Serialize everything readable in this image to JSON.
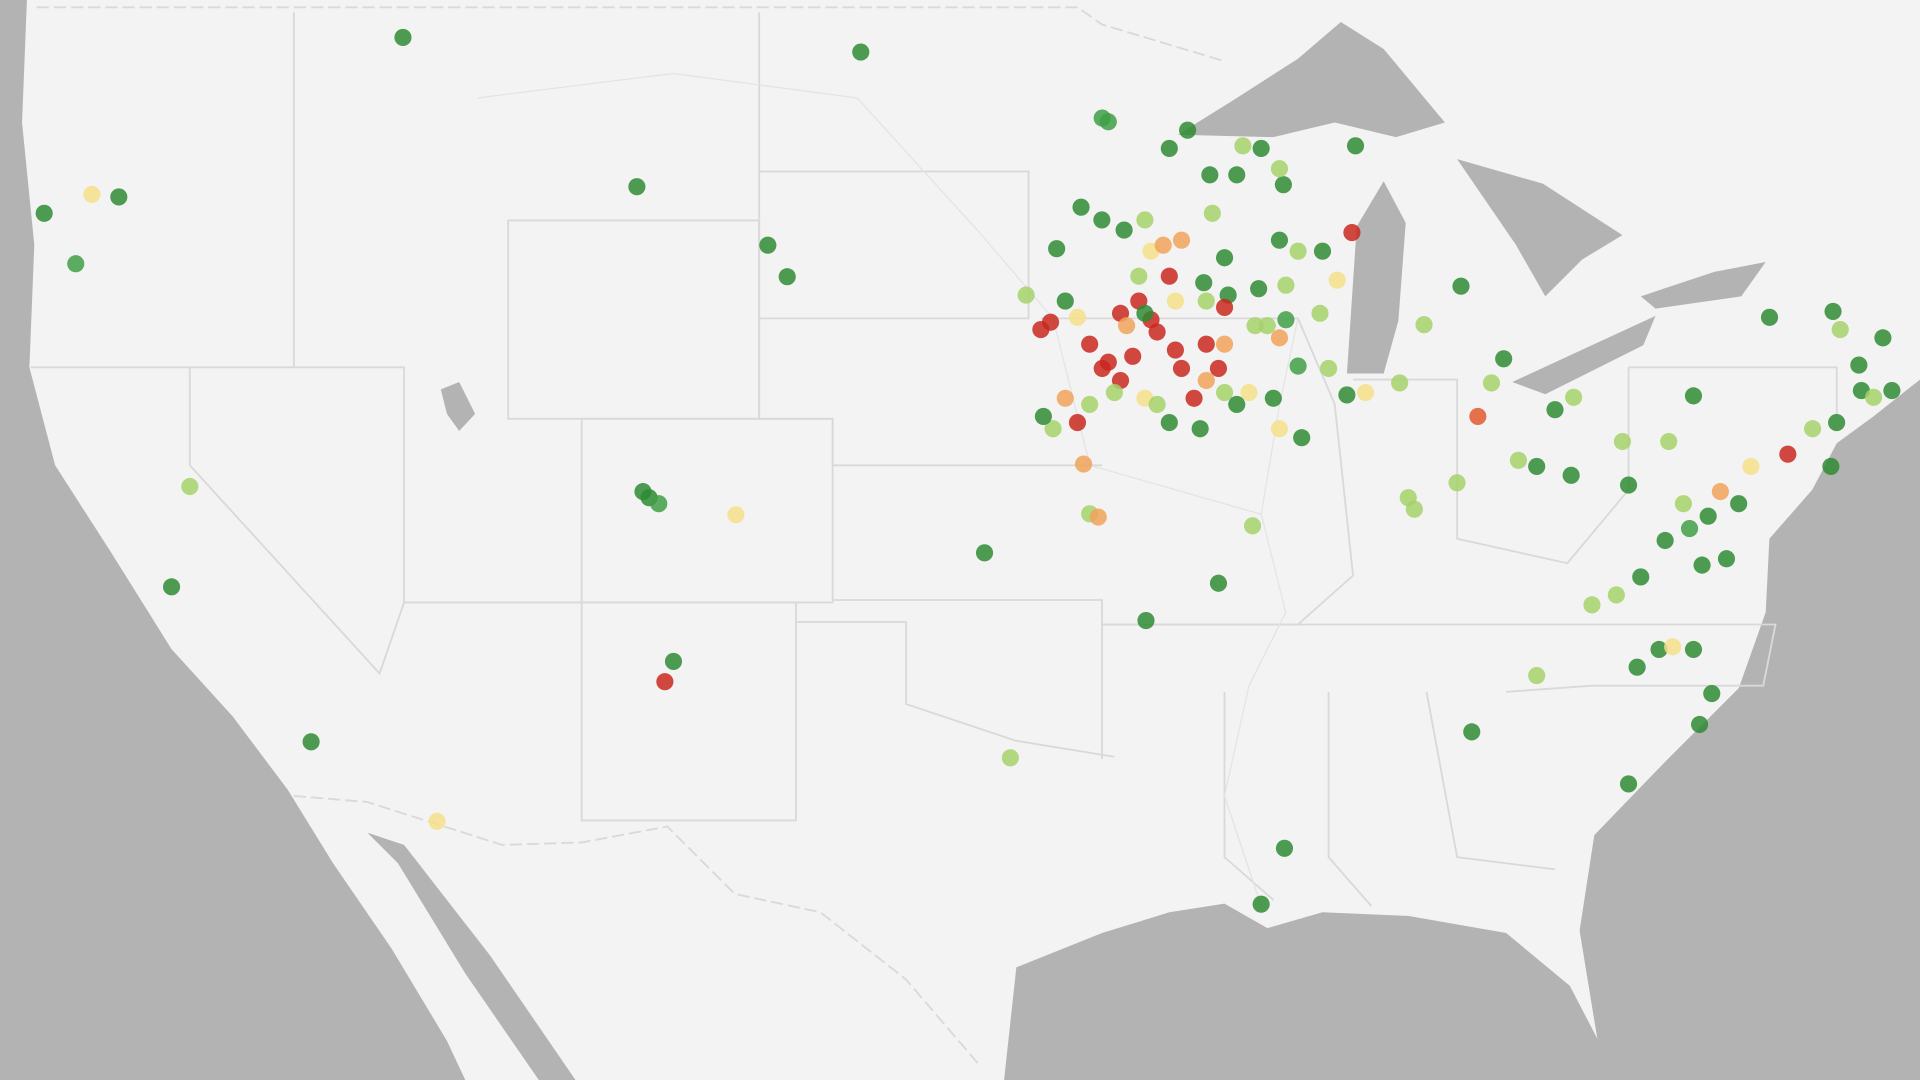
{
  "map": {
    "points": [
      [
        -114.03,
        48.53,
        "#2e8b34"
      ],
      [
        -101.27,
        48.26,
        "#2e8b34"
      ],
      [
        -107.51,
        45.7,
        "#2e8b34"
      ],
      [
        -124.03,
        45.18,
        "#2e8b34"
      ],
      [
        -121.95,
        45.5,
        "#2e8b34"
      ],
      [
        -122.7,
        45.55,
        "#f5df8a"
      ],
      [
        -123.15,
        44.18,
        "#3f9f45"
      ],
      [
        -103.86,
        44.55,
        "#2e8b34"
      ],
      [
        -103.32,
        43.92,
        "#2e8b34"
      ],
      [
        -119.97,
        39.56,
        "#a4d16a"
      ],
      [
        -120.48,
        37.37,
        "#2e8b34"
      ],
      [
        -116.59,
        33.86,
        "#2e8b34"
      ],
      [
        -113.08,
        32.0,
        "#f5df8a"
      ],
      [
        -107.17,
        39.32,
        "#2e8b34"
      ],
      [
        -107.34,
        39.45,
        "#2e8b34"
      ],
      [
        -106.9,
        39.19,
        "#3f9f45"
      ],
      [
        -104.75,
        38.95,
        "#f5df8a"
      ],
      [
        -106.49,
        35.7,
        "#2e8b34"
      ],
      [
        -106.73,
        35.24,
        "#c9281e"
      ],
      [
        -97.82,
        38.12,
        "#2e8b34"
      ],
      [
        -97.1,
        33.49,
        "#a4d16a"
      ],
      [
        -93.32,
        36.62,
        "#2e8b34"
      ],
      [
        -91.3,
        37.45,
        "#2e8b34"
      ],
      [
        -90.35,
        38.71,
        "#a4d16a"
      ],
      [
        -94.89,
        38.97,
        "#a4d16a"
      ],
      [
        -94.65,
        38.9,
        "#f0a35a"
      ],
      [
        -95.06,
        40.04,
        "#f0a35a"
      ],
      [
        -89.46,
        31.36,
        "#2e8b34"
      ],
      [
        -90.11,
        30.02,
        "#2e8b34"
      ],
      [
        -84.24,
        34.09,
        "#2e8b34"
      ],
      [
        -82.43,
        35.38,
        "#a4d16a"
      ],
      [
        -79.87,
        32.88,
        "#2e8b34"
      ],
      [
        -77.89,
        34.26,
        "#2e8b34"
      ],
      [
        -77.55,
        34.97,
        "#2e8b34"
      ],
      [
        -79.63,
        35.57,
        "#2e8b34"
      ],
      [
        -79.02,
        35.97,
        "#2e8b34"
      ],
      [
        -78.06,
        35.97,
        "#2e8b34"
      ],
      [
        -78.64,
        36.03,
        "#f5df8a"
      ],
      [
        -80.89,
        36.97,
        "#a4d16a"
      ],
      [
        -80.21,
        37.19,
        "#a4d16a"
      ],
      [
        -79.53,
        37.59,
        "#2e8b34"
      ],
      [
        -78.85,
        38.39,
        "#2e8b34"
      ],
      [
        -78.17,
        38.65,
        "#3f9f45"
      ],
      [
        -77.65,
        38.92,
        "#2e8b34"
      ],
      [
        -77.31,
        39.45,
        "#f0a35a"
      ],
      [
        -77.14,
        37.99,
        "#2e8b34"
      ],
      [
        -77.82,
        37.85,
        "#2e8b34"
      ],
      [
        -76.8,
        39.19,
        "#2e8b34"
      ],
      [
        -78.34,
        39.19,
        "#a4d16a"
      ],
      [
        -79.87,
        39.59,
        "#2e8b34"
      ],
      [
        -78.75,
        40.52,
        "#a4d16a"
      ],
      [
        -80.04,
        40.52,
        "#a4d16a"
      ],
      [
        -76.46,
        39.99,
        "#f5df8a"
      ],
      [
        -75.43,
        40.25,
        "#c9281e"
      ],
      [
        -74.74,
        40.79,
        "#a4d16a"
      ],
      [
        -74.23,
        39.99,
        "#2e8b34"
      ],
      [
        -74.07,
        40.92,
        "#2e8b34"
      ],
      [
        -73.38,
        41.59,
        "#2e8b34"
      ],
      [
        -73.04,
        41.45,
        "#a4d16a"
      ],
      [
        -72.53,
        41.59,
        "#2e8b34"
      ],
      [
        -73.45,
        42.12,
        "#2e8b34"
      ],
      [
        -74.17,
        43.22,
        "#2e8b34"
      ],
      [
        -73.97,
        42.85,
        "#a4d16a"
      ],
      [
        -75.94,
        43.1,
        "#2e8b34"
      ],
      [
        -78.06,
        41.48,
        "#2e8b34"
      ],
      [
        -72.78,
        42.68,
        "#2e8b34"
      ],
      [
        -84.07,
        41.05,
        "#e0582e"
      ],
      [
        -82.94,
        40.12,
        "#a4d16a"
      ],
      [
        -82.43,
        39.99,
        "#2e8b34"
      ],
      [
        -81.47,
        39.8,
        "#2e8b34"
      ],
      [
        -81.92,
        41.19,
        "#2e8b34"
      ],
      [
        -81.4,
        41.45,
        "#a4d16a"
      ],
      [
        -83.35,
        42.25,
        "#2e8b34"
      ],
      [
        -83.69,
        41.75,
        "#a4d16a"
      ],
      [
        -84.65,
        39.64,
        "#a4d16a"
      ],
      [
        -86.01,
        39.32,
        "#a4d16a"
      ],
      [
        -85.84,
        39.07,
        "#a4d16a"
      ],
      [
        -86.25,
        41.75,
        "#a4d16a"
      ],
      [
        -87.2,
        41.55,
        "#f5df8a"
      ],
      [
        -87.72,
        41.5,
        "#2e8b34"
      ],
      [
        -85.57,
        42.95,
        "#a4d16a"
      ],
      [
        -84.54,
        43.73,
        "#2e8b34"
      ],
      [
        -87.48,
        46.49,
        "#2e8b34"
      ],
      [
        -94.54,
        47.02,
        "#3f9f45"
      ],
      [
        -94.37,
        46.95,
        "#3f9f45"
      ],
      [
        -92.16,
        46.79,
        "#2e8b34"
      ],
      [
        -92.67,
        46.44,
        "#2e8b34"
      ],
      [
        -90.11,
        46.44,
        "#2e8b34"
      ],
      [
        -90.62,
        46.49,
        "#a4d16a"
      ],
      [
        -91.54,
        45.93,
        "#2e8b34"
      ],
      [
        -90.79,
        45.93,
        "#2e8b34"
      ],
      [
        -89.49,
        45.74,
        "#2e8b34"
      ],
      [
        -89.6,
        46.05,
        "#a4d16a"
      ],
      [
        -95.13,
        45.3,
        "#2e8b34"
      ],
      [
        -94.55,
        45.05,
        "#2e8b34"
      ],
      [
        -95.81,
        44.48,
        "#2e8b34"
      ],
      [
        -93.35,
        45.05,
        "#a4d16a"
      ],
      [
        -93.93,
        44.85,
        "#2e8b34"
      ],
      [
        -93.18,
        44.43,
        "#f5df8a"
      ],
      [
        -92.33,
        44.65,
        "#f0a35a"
      ],
      [
        -91.47,
        45.18,
        "#a4d16a"
      ],
      [
        -89.6,
        44.65,
        "#2e8b34"
      ],
      [
        -89.08,
        44.43,
        "#a4d16a"
      ],
      [
        -88.4,
        44.43,
        "#2e8b34"
      ],
      [
        -87.58,
        44.8,
        "#c9281e"
      ],
      [
        -87.99,
        43.85,
        "#f5df8a"
      ],
      [
        -89.42,
        43.75,
        "#a4d16a"
      ],
      [
        -90.18,
        43.68,
        "#2e8b34"
      ],
      [
        -89.42,
        43.05,
        "#3f9f45"
      ],
      [
        -88.47,
        43.18,
        "#a4d16a"
      ],
      [
        -89.6,
        42.68,
        "#f0a35a"
      ],
      [
        -88.23,
        42.05,
        "#a4d16a"
      ],
      [
        -89.08,
        42.1,
        "#3f9f45"
      ],
      [
        -90.28,
        42.93,
        "#a4d16a"
      ],
      [
        -91.03,
        43.55,
        "#2e8b34"
      ],
      [
        -96.25,
        42.85,
        "#c9281e"
      ],
      [
        -95.98,
        43.0,
        "#c9281e"
      ],
      [
        -94.89,
        42.55,
        "#c9281e"
      ],
      [
        -94.37,
        42.18,
        "#c9281e"
      ],
      [
        -94.03,
        43.18,
        "#c9281e"
      ],
      [
        -93.52,
        43.43,
        "#c9281e"
      ],
      [
        -93.01,
        42.8,
        "#c9281e"
      ],
      [
        -92.67,
        43.93,
        "#c9281e"
      ],
      [
        -92.5,
        42.43,
        "#c9281e"
      ],
      [
        -91.64,
        42.55,
        "#c9281e"
      ],
      [
        -91.3,
        42.05,
        "#c9281e"
      ],
      [
        -94.03,
        41.8,
        "#c9281e"
      ],
      [
        -94.54,
        42.05,
        "#c9281e"
      ],
      [
        -95.23,
        40.92,
        "#c9281e"
      ],
      [
        -91.98,
        41.43,
        "#c9281e"
      ],
      [
        -93.18,
        43.05,
        "#c9281e"
      ],
      [
        -93.69,
        42.3,
        "#c9281e"
      ],
      [
        -91.13,
        43.3,
        "#c9281e"
      ],
      [
        -92.33,
        42.05,
        "#c9281e"
      ],
      [
        -95.57,
        41.43,
        "#f0a35a"
      ],
      [
        -92.84,
        44.55,
        "#f0a35a"
      ],
      [
        -91.64,
        41.8,
        "#f0a35a"
      ],
      [
        -93.86,
        42.93,
        "#f0a35a"
      ],
      [
        -91.13,
        42.55,
        "#f0a35a"
      ],
      [
        -95.23,
        43.1,
        "#f5df8a"
      ],
      [
        -90.45,
        41.55,
        "#f5df8a"
      ],
      [
        -89.6,
        40.79,
        "#f5df8a"
      ],
      [
        -92.5,
        43.43,
        "#f5df8a"
      ],
      [
        -93.35,
        41.43,
        "#f5df8a"
      ],
      [
        -96.66,
        43.55,
        "#a4d16a"
      ],
      [
        -95.91,
        40.79,
        "#a4d16a"
      ],
      [
        -94.2,
        41.55,
        "#a4d16a"
      ],
      [
        -93.01,
        41.3,
        "#a4d16a"
      ],
      [
        -91.13,
        41.55,
        "#a4d16a"
      ],
      [
        -89.94,
        42.93,
        "#a4d16a"
      ],
      [
        -91.64,
        43.43,
        "#a4d16a"
      ],
      [
        -93.52,
        43.93,
        "#a4d16a"
      ],
      [
        -94.89,
        41.3,
        "#a4d16a"
      ],
      [
        -96.18,
        41.05,
        "#2e8b34"
      ],
      [
        -93.35,
        43.18,
        "#2e8b34"
      ],
      [
        -91.81,
        40.79,
        "#2e8b34"
      ],
      [
        -89.77,
        41.43,
        "#2e8b34"
      ],
      [
        -88.98,
        40.6,
        "#2e8b34"
      ],
      [
        -90.79,
        41.3,
        "#2e8b34"
      ],
      [
        -95.57,
        43.43,
        "#2e8b34"
      ],
      [
        -92.67,
        40.92,
        "#2e8b34"
      ],
      [
        -91.13,
        44.3,
        "#2e8b34"
      ],
      [
        -91.71,
        43.8,
        "#2e8b34"
      ]
    ]
  }
}
